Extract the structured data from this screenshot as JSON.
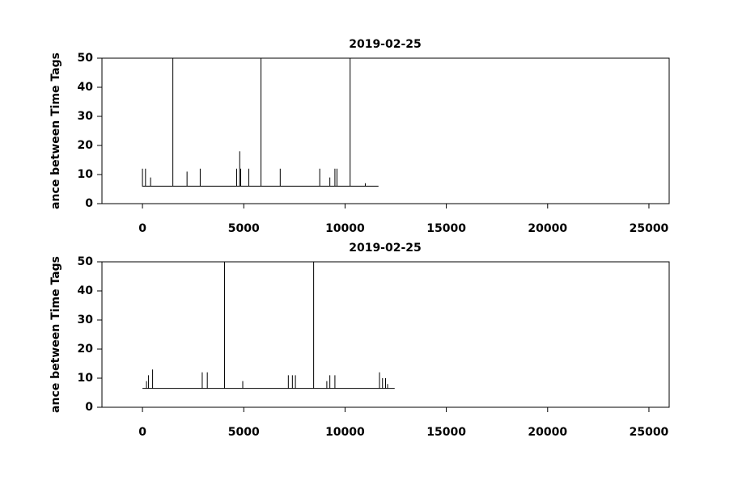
{
  "chart_data": [
    {
      "type": "line",
      "title": "2019-02-25",
      "y_label": "ance between Time Tags",
      "x": [
        0,
        0,
        0,
        150,
        150,
        150,
        400,
        400,
        400,
        1500,
        1500,
        1500,
        2200,
        2200,
        2200,
        2850,
        2850,
        2850,
        4650,
        4650,
        4650,
        4800,
        4800,
        4800,
        4850,
        4850,
        4850,
        5250,
        5250,
        5250,
        5850,
        5850,
        5850,
        6800,
        6800,
        6800,
        8750,
        8750,
        8750,
        9250,
        9250,
        9250,
        9500,
        9500,
        9500,
        9600,
        9600,
        9600,
        10250,
        10250,
        10250,
        11000,
        11000,
        11000,
        11650
      ],
      "series": [
        {
          "color": "#000000",
          "values": [
            6,
            12,
            6,
            6,
            12,
            6,
            6,
            9,
            6,
            6,
            50,
            6,
            6,
            11,
            6,
            6,
            12,
            6,
            6,
            12,
            6,
            6,
            18,
            6,
            6,
            12,
            6,
            6,
            12,
            6,
            6,
            50,
            6,
            6,
            12,
            6,
            6,
            12,
            6,
            6,
            9,
            6,
            6,
            12,
            6,
            6,
            12,
            6,
            6,
            50,
            6,
            6,
            7,
            6,
            6
          ]
        }
      ],
      "xlim": [
        -2000,
        26000
      ],
      "xticks": [
        0,
        5000,
        10000,
        15000,
        20000,
        25000
      ],
      "ylim": [
        0,
        50
      ],
      "yticks": [
        0,
        10,
        20,
        30,
        40,
        50
      ]
    },
    {
      "type": "line",
      "title": "2019-02-25",
      "y_label": "ance between Time Tags",
      "x": [
        0,
        200,
        200,
        200,
        300,
        300,
        300,
        500,
        500,
        500,
        2950,
        2950,
        2950,
        3200,
        3200,
        3200,
        4050,
        4050,
        4050,
        4950,
        4950,
        4950,
        7200,
        7200,
        7200,
        7400,
        7400,
        7400,
        7550,
        7550,
        7550,
        8450,
        8450,
        8450,
        9100,
        9100,
        9100,
        9250,
        9250,
        9250,
        9500,
        9500,
        9500,
        11700,
        11700,
        11700,
        11850,
        11850,
        11850,
        12000,
        12000,
        12000,
        12100,
        12100,
        12100,
        12450
      ],
      "series": [
        {
          "color": "#000000",
          "values": [
            6.5,
            6.5,
            9,
            6.5,
            6.5,
            11,
            6.5,
            6.5,
            13,
            6.5,
            6.5,
            12,
            6.5,
            6.5,
            12,
            6.5,
            6.5,
            50,
            6.5,
            6.5,
            9,
            6.5,
            6.5,
            11,
            6.5,
            6.5,
            11,
            6.5,
            6.5,
            11,
            6.5,
            6.5,
            50,
            6.5,
            6.5,
            9,
            6.5,
            6.5,
            11,
            6.5,
            6.5,
            11,
            6.5,
            6.5,
            12,
            6.5,
            6.5,
            10,
            6.5,
            6.5,
            10,
            6.5,
            6.5,
            8,
            6.5,
            6.5
          ]
        }
      ],
      "xlim": [
        -2000,
        26000
      ],
      "xticks": [
        0,
        5000,
        10000,
        15000,
        20000,
        25000
      ],
      "ylim": [
        0,
        50
      ],
      "yticks": [
        0,
        10,
        20,
        30,
        40,
        50
      ]
    }
  ]
}
